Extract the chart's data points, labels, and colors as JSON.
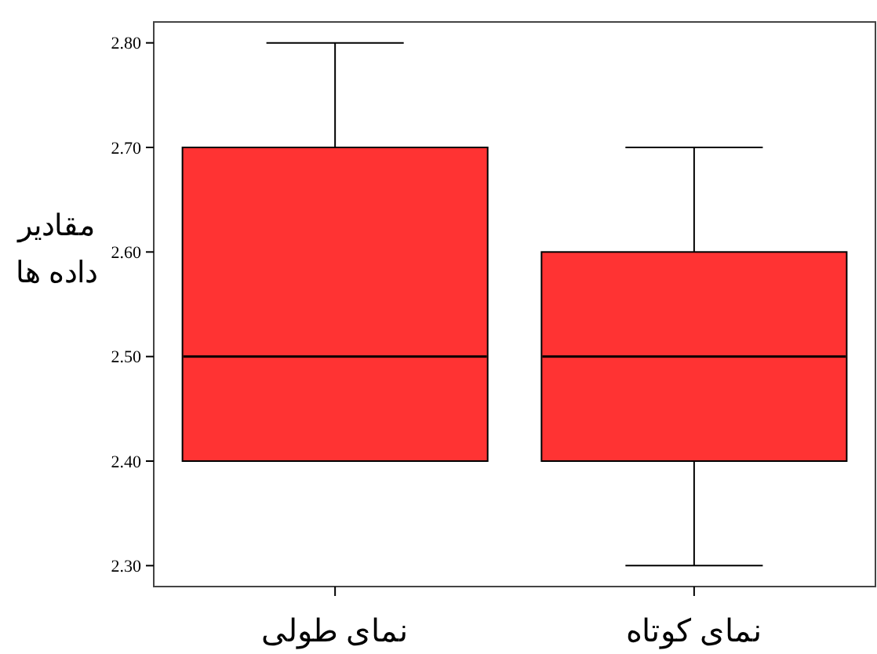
{
  "chart_data": {
    "type": "box",
    "ylabel": "مقادیر\nداده ها",
    "categories": [
      "نمای طولی",
      "نمای کوتاه"
    ],
    "color": "#ff3333",
    "boxes": [
      {
        "low": 2.4,
        "q1": 2.4,
        "median": 2.5,
        "q3": 2.7,
        "high": 2.8
      },
      {
        "low": 2.3,
        "q1": 2.4,
        "median": 2.5,
        "q3": 2.6,
        "high": 2.7
      }
    ],
    "ylim": [
      2.28,
      2.82
    ],
    "yticks": [
      {
        "value": 2.3,
        "label": "2.30"
      },
      {
        "value": 2.4,
        "label": "2.40"
      },
      {
        "value": 2.5,
        "label": "2.50"
      },
      {
        "value": 2.6,
        "label": "2.60"
      },
      {
        "value": 2.7,
        "label": "2.70"
      },
      {
        "value": 2.8,
        "label": "2.80"
      }
    ]
  }
}
